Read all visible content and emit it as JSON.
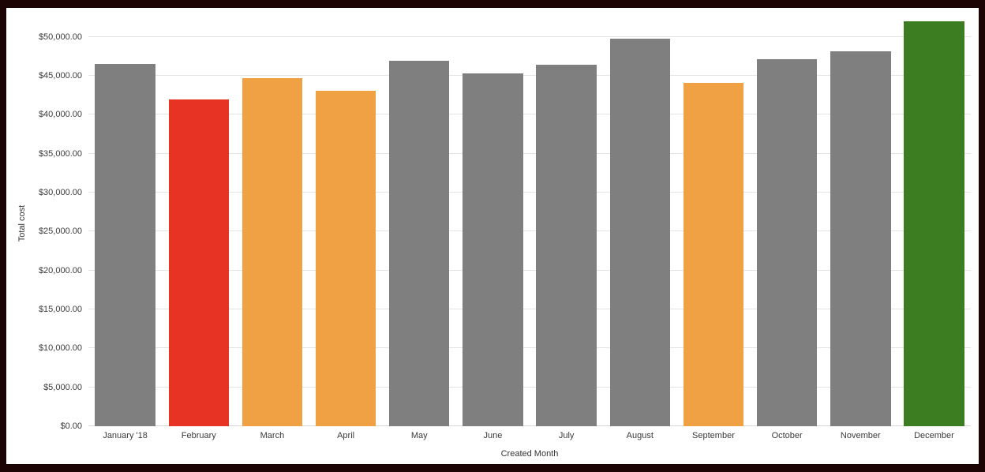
{
  "chart_data": {
    "type": "bar",
    "title": "",
    "xlabel": "Created Month",
    "ylabel": "Total cost",
    "categories": [
      "January '18",
      "February",
      "March",
      "April",
      "May",
      "June",
      "July",
      "August",
      "September",
      "October",
      "November",
      "December"
    ],
    "values": [
      46500,
      42000,
      44700,
      43100,
      46900,
      45300,
      46400,
      49800,
      44100,
      47100,
      48100,
      52000
    ],
    "bar_colors": [
      "#7f7f7f",
      "#e73323",
      "#efa143",
      "#efa143",
      "#7f7f7f",
      "#7f7f7f",
      "#7f7f7f",
      "#7f7f7f",
      "#efa143",
      "#7f7f7f",
      "#7f7f7f",
      "#3c7d22"
    ],
    "ylim": [
      0,
      52000
    ],
    "ytick_values": [
      0,
      5000,
      10000,
      15000,
      20000,
      25000,
      30000,
      35000,
      40000,
      45000,
      50000
    ],
    "ytick_labels": [
      "$0.00",
      "$5,000.00",
      "$10,000.00",
      "$15,000.00",
      "$20,000.00",
      "$25,000.00",
      "$30,000.00",
      "$35,000.00",
      "$40,000.00",
      "$45,000.00",
      "$50,000.00"
    ],
    "grid": "horizontal",
    "legend": "none"
  },
  "frame": {
    "border_color": "#1c0404",
    "background": "#ffffff",
    "grid_color": "#e4e4e4",
    "gray_bar_color": "#7f7f7f",
    "red_bar_color": "#e73323",
    "orange_bar_color": "#efa143",
    "green_bar_color": "#3c7d22",
    "text_color": "#3a3a3a"
  }
}
